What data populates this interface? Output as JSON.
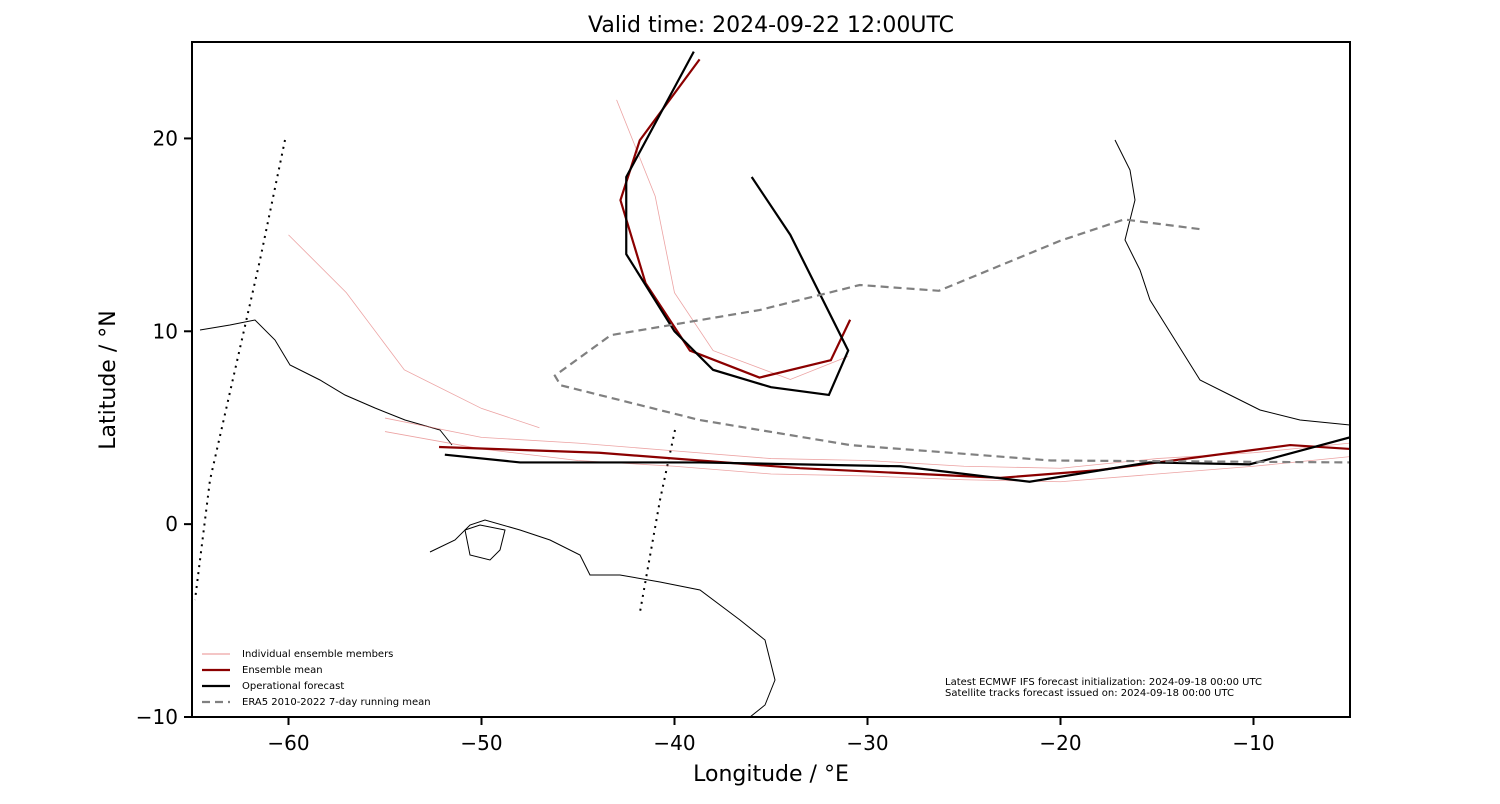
{
  "chart_data": {
    "type": "line",
    "title": "Valid time: 2024-09-22 12:00UTC",
    "x_label": "Longitude / °E",
    "y_label": "Latitude / °N",
    "xlim": [
      -65,
      -5
    ],
    "ylim": [
      -10,
      25
    ],
    "xticks": [
      {
        "value": -60,
        "label": "−60"
      },
      {
        "value": -50,
        "label": "−50"
      },
      {
        "value": -40,
        "label": "−40"
      },
      {
        "value": -30,
        "label": "−30"
      },
      {
        "value": -20,
        "label": "−20"
      },
      {
        "value": -10,
        "label": "−10"
      }
    ],
    "yticks": [
      {
        "value": -10,
        "label": "−10"
      },
      0,
      10,
      20
    ],
    "legend_position": "lower left",
    "annotations": [
      "Latest ECMWF IFS forecast initialization: 2024-09-18 00:00 UTC",
      "Satellite tracks forecast issued on: 2024-09-18 00:00 UTC"
    ],
    "series": [
      {
        "name": "Individual ensemble members",
        "color": "#e06666",
        "line_style": "solid",
        "x": [
          -55,
          -50,
          -45,
          -40,
          -35,
          -30,
          -25,
          -20,
          -15,
          -10,
          -5,
          null,
          -55,
          -50,
          -45,
          -40,
          -35,
          -30,
          -25,
          -20,
          -15,
          -10,
          -5,
          null,
          -43,
          -41,
          -40,
          -38,
          -34,
          -31,
          null,
          -60,
          -57,
          -54,
          -50,
          -47
        ],
        "y": [
          5.5,
          4.5,
          4.2,
          3.8,
          3.4,
          3.3,
          3.0,
          2.9,
          3.4,
          3.7,
          4.2,
          null,
          4.8,
          3.9,
          3.3,
          3.0,
          2.6,
          2.5,
          2.3,
          2.2,
          2.6,
          3.0,
          3.5,
          null,
          22,
          17,
          12,
          9,
          7.5,
          8.7,
          null,
          15,
          12,
          8,
          6,
          5
        ]
      },
      {
        "name": "Ensemble mean",
        "color": "#8b0000",
        "line_style": "solid",
        "x": [
          -52.2,
          -43.9,
          -33.5,
          -23.1,
          -18.0,
          -8.1,
          -5,
          null,
          -38.7,
          -41.8,
          -42.8,
          -41.5,
          -39.2,
          -35.6,
          -31.9,
          -30.9
        ],
        "y": [
          4.0,
          3.7,
          2.9,
          2.4,
          2.8,
          4.1,
          3.9,
          null,
          24.1,
          19.9,
          16.8,
          12.5,
          9.0,
          7.6,
          8.5,
          10.6
        ]
      },
      {
        "name": "Operational forecast",
        "color": "#000000",
        "line_style": "solid",
        "x": [
          -51.9,
          -48.0,
          -38.7,
          -28.3,
          -21.6,
          -15.4,
          -10.2,
          -5,
          null,
          -39,
          -42.5,
          -42.5,
          -40,
          -38,
          -35,
          -32,
          -31,
          -34,
          -36
        ],
        "y": [
          3.6,
          3.2,
          3.2,
          3.0,
          2.2,
          3.2,
          3.1,
          4.5,
          null,
          24.5,
          18,
          14,
          10,
          8,
          7.1,
          6.7,
          9,
          15,
          18
        ]
      },
      {
        "name": "ERA5 2010-2022 7-day running mean",
        "color": "#808080",
        "line_style": "dashed",
        "x": [
          -12.8,
          -16.7,
          -20.0,
          -26.3,
          -30.4,
          -35.6,
          -43.3,
          -46.2,
          -45.9,
          -38.7,
          -30.9,
          -20.5,
          -5
        ],
        "y": [
          15.3,
          15.8,
          14.7,
          12.1,
          12.4,
          11.1,
          9.8,
          7.7,
          7.2,
          5.4,
          4.1,
          3.3,
          3.2
        ]
      }
    ]
  }
}
